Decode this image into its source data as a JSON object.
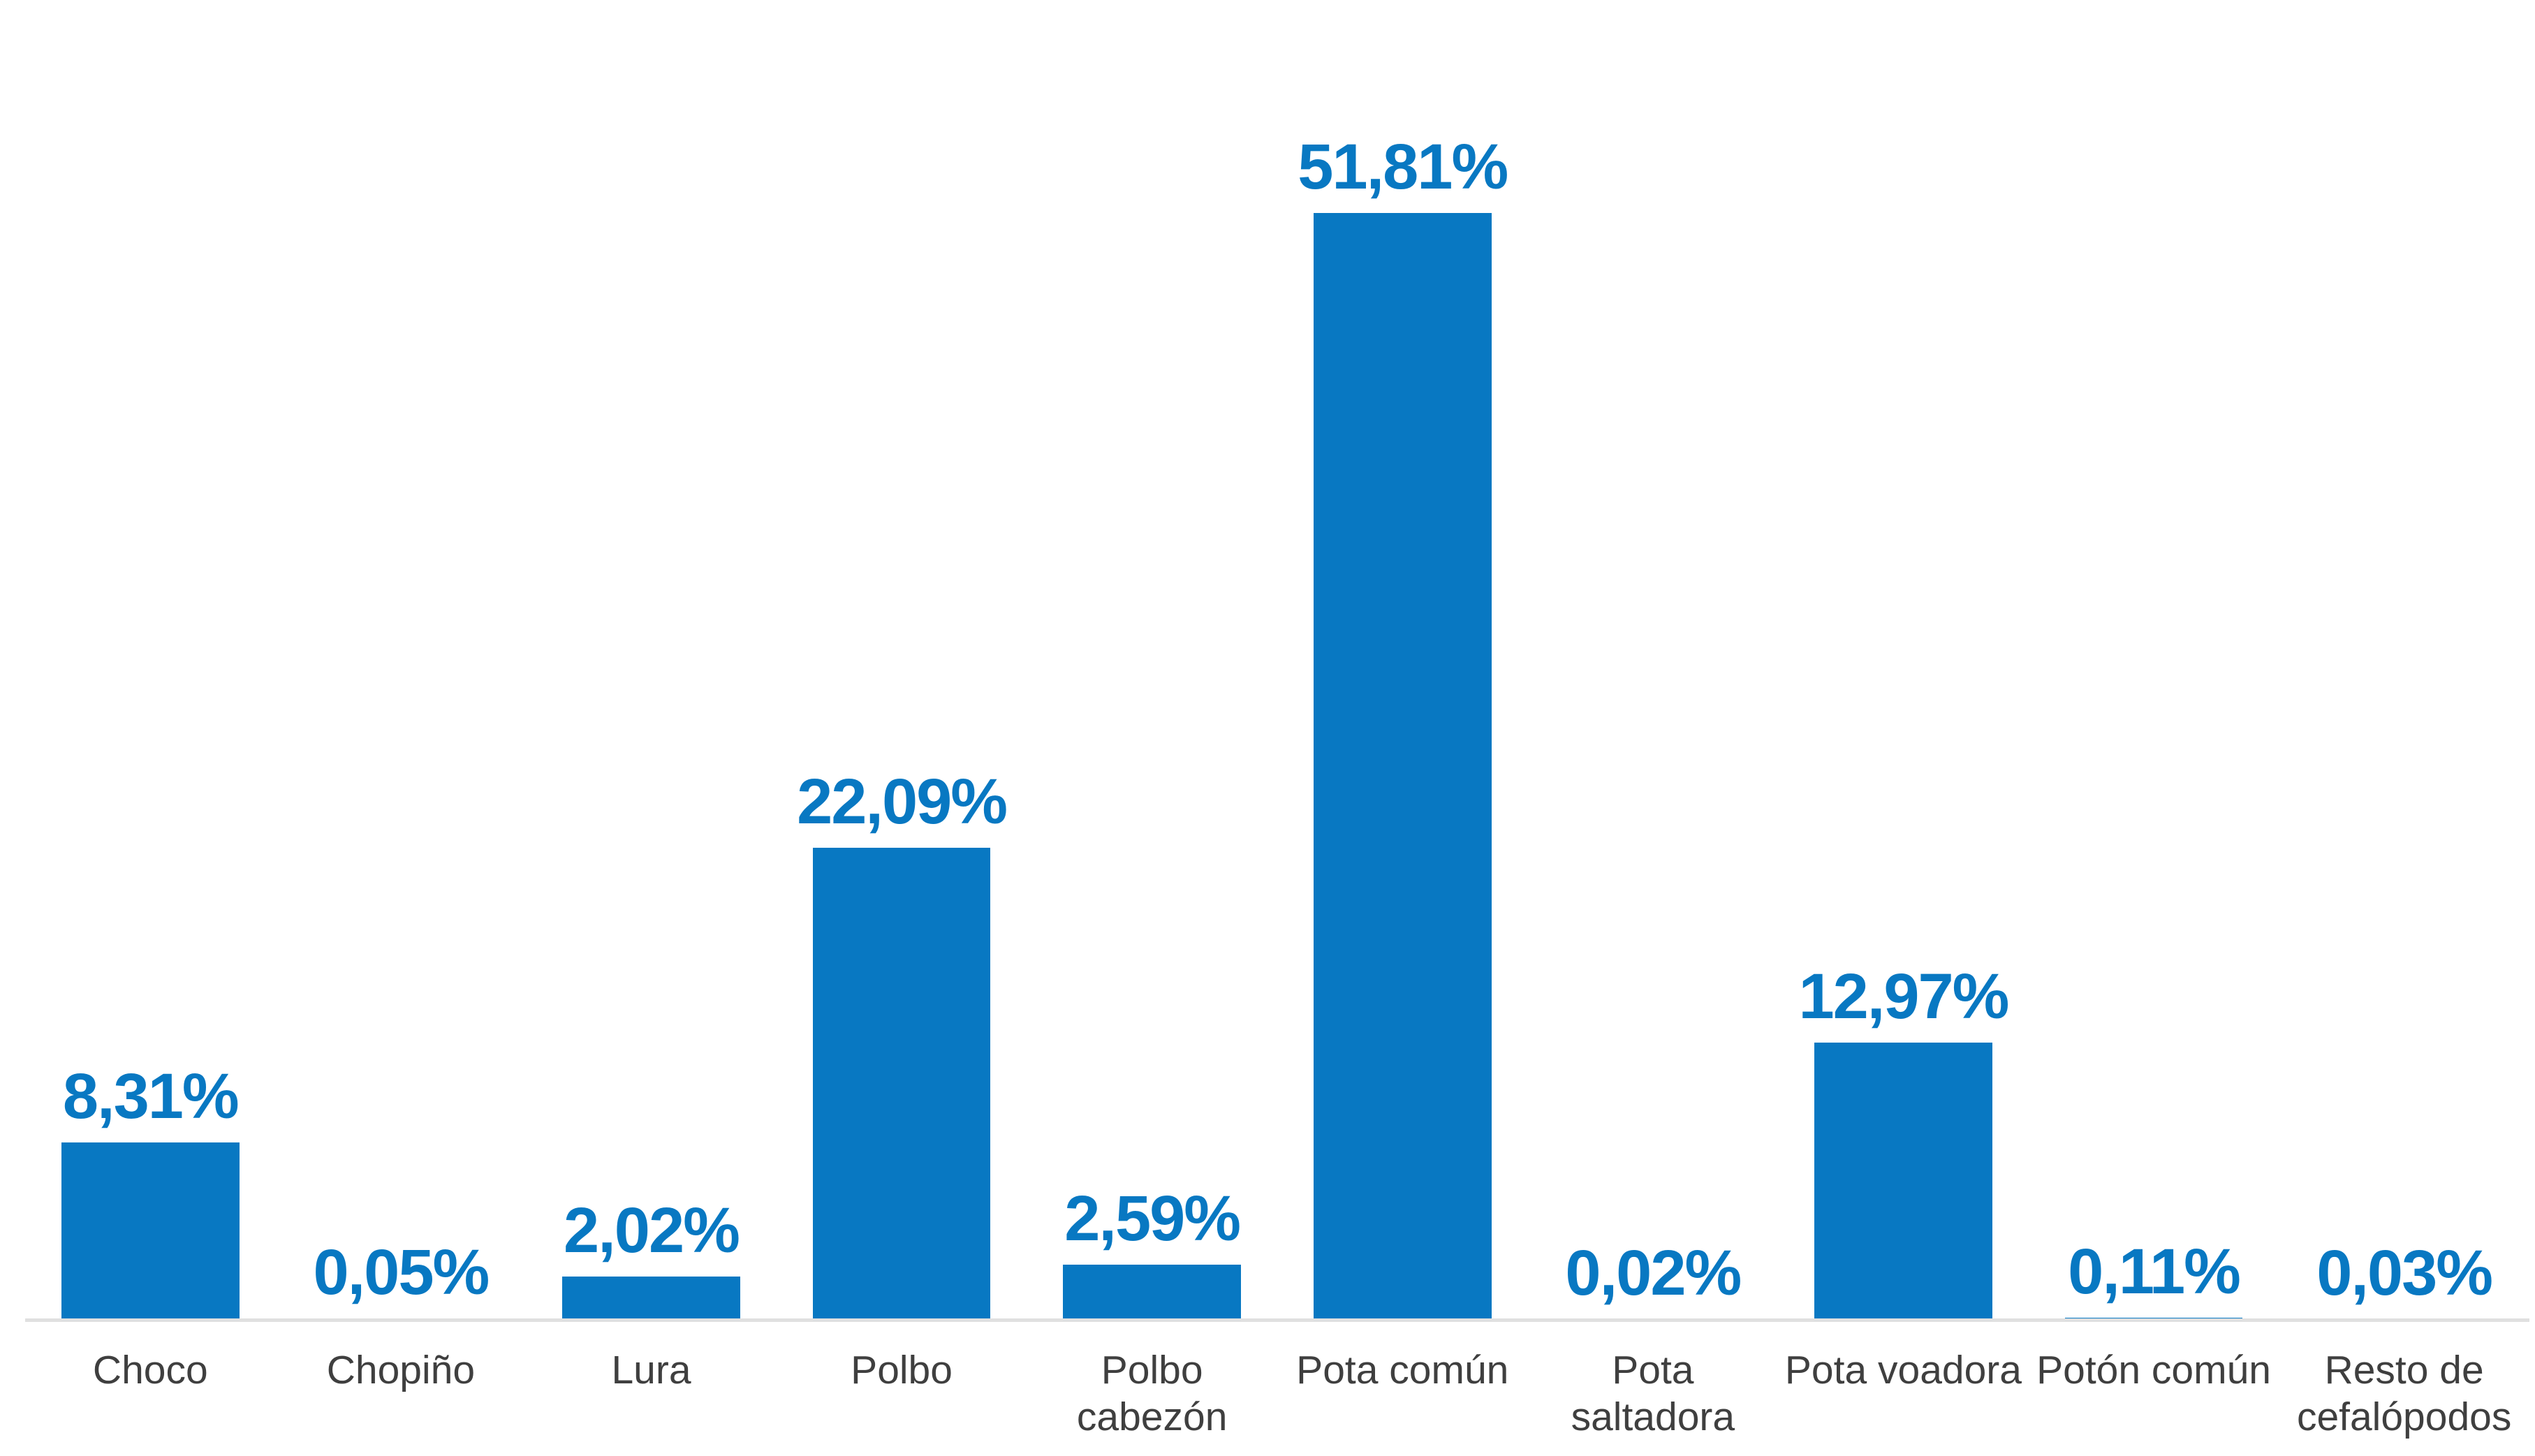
{
  "chart_data": {
    "type": "bar",
    "title": "",
    "xlabel": "",
    "ylabel": "",
    "categories": [
      "Choco",
      "Chopiño",
      "Lura",
      "Polbo",
      "Polbo cabezón",
      "Pota común",
      "Pota saltadora",
      "Pota voadora",
      "Potón común",
      "Resto de cefalópodos"
    ],
    "values": [
      8.31,
      0.05,
      2.02,
      22.09,
      2.59,
      51.81,
      0.02,
      12.97,
      0.11,
      0.03
    ],
    "value_labels": [
      "8,31%",
      "0,05%",
      "2,02%",
      "22,09%",
      "2,59%",
      "51,81%",
      "0,02%",
      "12,97%",
      "0,11%",
      "0,03%"
    ],
    "unit": "%",
    "decimal_separator": ",",
    "ylim": [
      0,
      56
    ],
    "grid": false,
    "legend": false,
    "data_labels_position": "outside-end-above-bar",
    "x_axis_line": true,
    "y_axis_visible": false
  },
  "colors": {
    "bar": "#0878c2",
    "value_label": "#0878c2",
    "category_label": "#3f3f3f",
    "axis_line": "#e0e0e0",
    "background": "#ffffff"
  }
}
